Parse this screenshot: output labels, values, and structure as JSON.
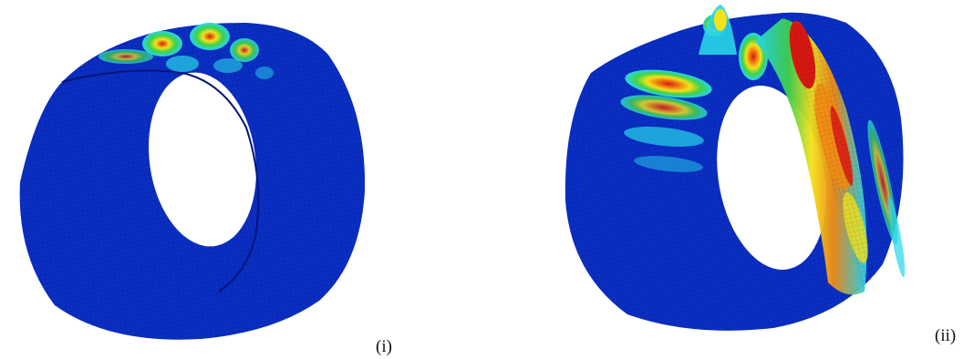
{
  "captions": {
    "panel_i": "(i)",
    "panel_ii": "(ii)"
  },
  "colors": {
    "shell_blue": "#0a2fc4",
    "shell_dark": "#05157a",
    "mesh_line": "#000033",
    "cyan": "#27d6e8",
    "green": "#3fd14a",
    "yellow": "#f2e21a",
    "orange": "#f28c12",
    "red": "#d81810",
    "white": "#ffffff"
  },
  "figure": {
    "panels": [
      {
        "id": "i",
        "description_key": "cylinder-buckling-mode-1"
      },
      {
        "id": "ii",
        "description_key": "cylinder-buckling-mode-2"
      }
    ]
  }
}
